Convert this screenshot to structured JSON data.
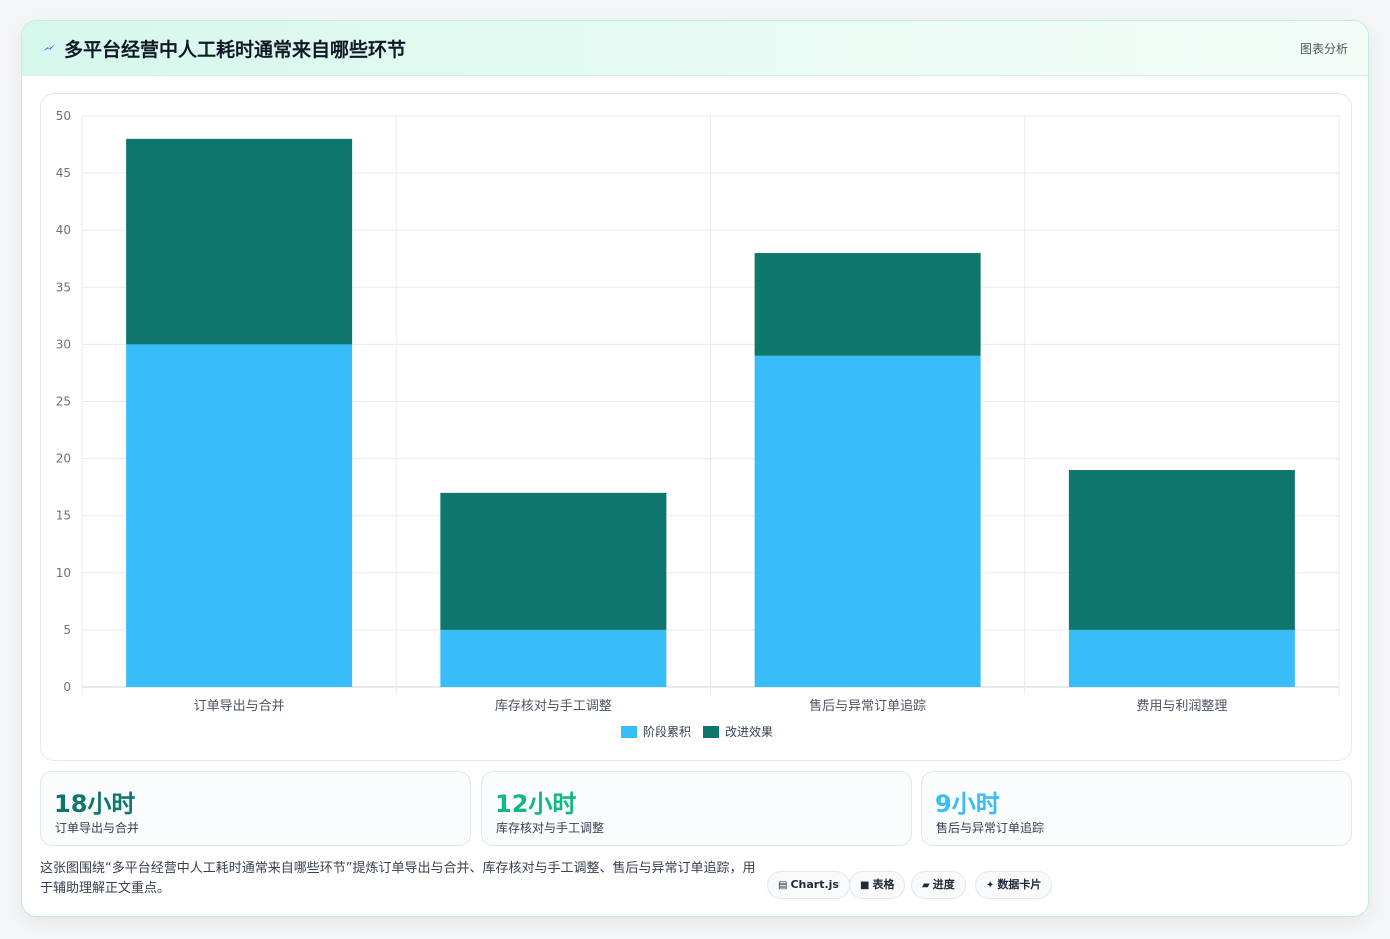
{
  "header": {
    "title": "多平台经营中人工耗时通常来自哪些环节",
    "tag": "图表分析"
  },
  "chart_data": {
    "type": "bar",
    "stacked": true,
    "categories": [
      "订单导出与合并",
      "库存核对与手工调整",
      "售后与异常订单追踪",
      "费用与利润整理"
    ],
    "series": [
      {
        "name": "阶段累积",
        "values": [
          30,
          5,
          29,
          5
        ],
        "color": "#38bdf8"
      },
      {
        "name": "改进效果",
        "values": [
          18,
          12,
          9,
          14
        ],
        "color": "#0f766e"
      }
    ],
    "ylim": [
      0,
      50
    ],
    "yticks": [
      0,
      5,
      10,
      15,
      20,
      25,
      30,
      35,
      40,
      45,
      50
    ],
    "grid": true,
    "legend_position": "bottom"
  },
  "stats": [
    {
      "value": "18小时",
      "label": "订单导出与合并",
      "color": "#0f766e"
    },
    {
      "value": "12小时",
      "label": "库存核对与手工调整",
      "color": "#10b981"
    },
    {
      "value": "9小时",
      "label": "售后与异常订单追踪",
      "color": "#38bdf8"
    }
  ],
  "description": "这张图围绕“多平台经营中人工耗时通常来自哪些环节”提炼订单导出与合并、库存核对与手工调整、售后与异常订单追踪，用于辅助理解正文重点。",
  "chips": [
    {
      "icon": "▤",
      "icon_name": "chart-icon",
      "label": "Chart.js"
    },
    {
      "icon": "■",
      "icon_name": "table-icon",
      "label": "表格"
    },
    {
      "icon": "▰",
      "icon_name": "progress-icon",
      "label": "进度"
    },
    {
      "icon": "✦",
      "icon_name": "sparkle-icon",
      "label": "数据卡片"
    }
  ]
}
